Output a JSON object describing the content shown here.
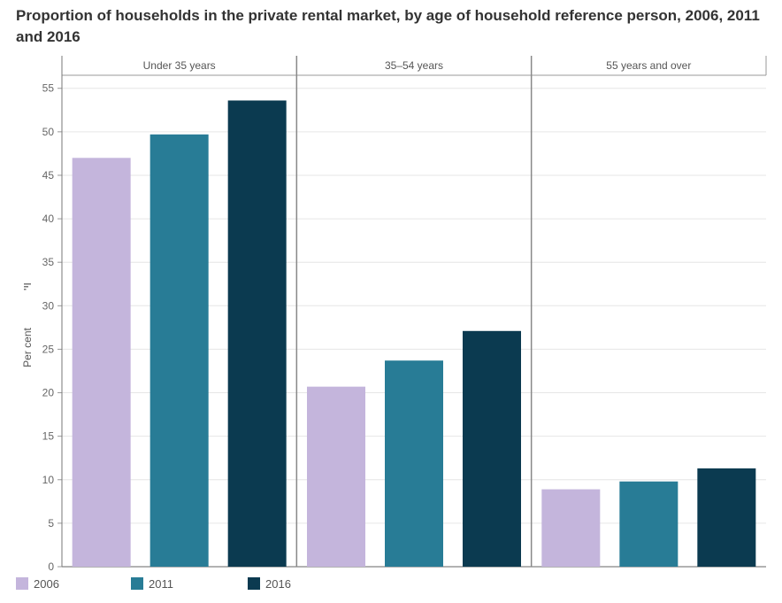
{
  "chart_data": {
    "type": "bar",
    "title": "Proportion of households in the private rental market, by age of household reference person, 2006, 2011 and 2016",
    "ylabel": "Per cent",
    "xlabel": "",
    "ylim": [
      0,
      55
    ],
    "yticks": [
      0,
      5,
      10,
      15,
      20,
      25,
      30,
      35,
      40,
      45,
      50,
      55
    ],
    "grid": true,
    "panels": [
      "Under 35 years",
      "35–54 years",
      "55 years and over"
    ],
    "series": [
      {
        "name": "2006",
        "color": "#c4b5dc",
        "values": [
          47.0,
          20.7,
          8.9
        ]
      },
      {
        "name": "2011",
        "color": "#287c96",
        "values": [
          49.7,
          23.7,
          9.8
        ]
      },
      {
        "name": "2016",
        "color": "#0b3a50",
        "values": [
          53.6,
          27.1,
          11.3
        ]
      }
    ],
    "legend_position": "bottom-left"
  },
  "ylabel_icon": "sort-icon"
}
